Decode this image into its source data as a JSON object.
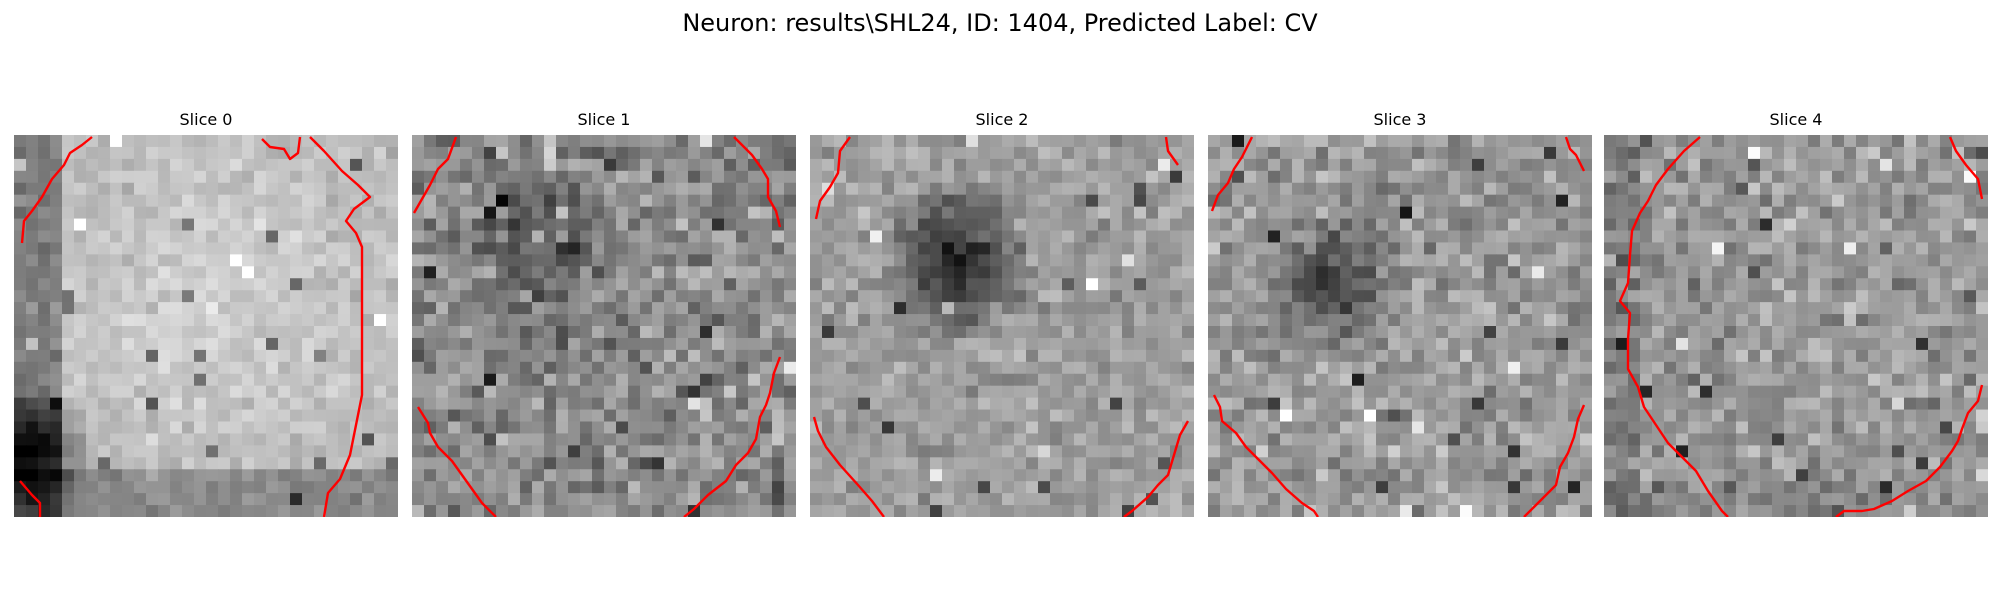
{
  "figure": {
    "title": "Neuron: results\\SHL24, ID: 1404, Predicted Label: CV"
  },
  "slices": [
    {
      "label": "Slice 0",
      "overlay_color": "#ff0000"
    },
    {
      "label": "Slice 1",
      "overlay_color": "#ff0000"
    },
    {
      "label": "Slice 2",
      "overlay_color": "#ff0000"
    },
    {
      "label": "Slice 3",
      "overlay_color": "#ff0000"
    },
    {
      "label": "Slice 4",
      "overlay_color": "#ff0000"
    }
  ],
  "colors": {
    "contour": "#ff0000",
    "colormap": "grayscale"
  }
}
